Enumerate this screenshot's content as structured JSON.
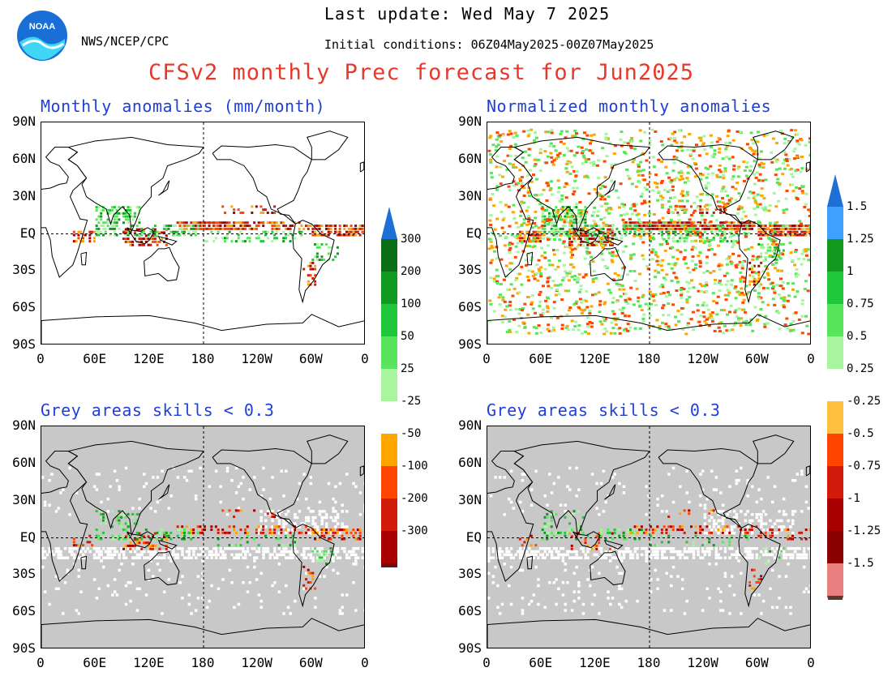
{
  "header": {
    "last_update": "Last update: Wed May 7 2025",
    "agency": "NWS/NCEP/CPC",
    "initial_conditions": "Initial conditions: 06Z04May2025-00Z07May2025",
    "main_title": "CFSv2 monthly Prec forecast for Jun2025",
    "logo_text": "NOAA"
  },
  "panels": {
    "top_left_title": "Monthly anomalies (mm/month)",
    "top_right_title": "Normalized monthly anomalies",
    "bottom_left_title": "Grey areas skills < 0.3",
    "bottom_right_title": "Grey areas skills < 0.3"
  },
  "axes": {
    "lat_labels": [
      "90N",
      "60N",
      "30N",
      "EQ",
      "30S",
      "60S",
      "90S"
    ],
    "lon_labels": [
      "0",
      "60E",
      "120E",
      "180",
      "120W",
      "60W",
      "0"
    ]
  },
  "colorbar_left": {
    "labels": [
      "300",
      "200",
      "100",
      "50",
      "25",
      "-25",
      "-50",
      "-100",
      "-200",
      "-300"
    ],
    "colors": {
      "positive": [
        "#0a6e16",
        "#119a1f",
        "#1fc83a",
        "#57e65b",
        "#a8f5a0"
      ],
      "negative": [
        "#ffa500",
        "#ff4500",
        "#d11a0a",
        "#a80000",
        "#6e1010"
      ],
      "top_arrow": "#1e6fd6",
      "bottom_arrow": "#5a3a28"
    }
  },
  "colorbar_right": {
    "labels": [
      "1.5",
      "1.25",
      "1",
      "0.75",
      "0.5",
      "0.25",
      "-0.25",
      "-0.5",
      "-0.75",
      "-1",
      "-1.25",
      "-1.5"
    ],
    "colors": {
      "positive": [
        "#3fa0ff",
        "#119a1f",
        "#1fc83a",
        "#57e65b",
        "#a8f5a0"
      ],
      "negative": [
        "#ffc040",
        "#ff4500",
        "#d11a0a",
        "#a80000",
        "#8b0000",
        "#e88080"
      ],
      "top_arrow": "#1e6fd6",
      "bottom_arrow": "#5a3a28"
    }
  },
  "colors": {
    "title_red": "#e8382c",
    "panel_title_blue": "#1f3fd6",
    "grey_mask": "#c8c8c8"
  }
}
